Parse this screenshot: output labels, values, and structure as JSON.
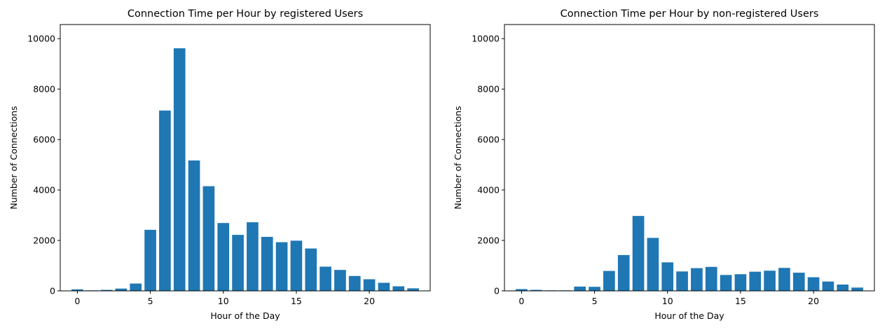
{
  "chart_data": [
    {
      "type": "bar",
      "title": "Connection Time per Hour by registered Users",
      "xlabel": "Hour of the Day",
      "ylabel": "Number of Connections",
      "x": [
        0,
        1,
        2,
        3,
        4,
        5,
        6,
        7,
        8,
        9,
        10,
        11,
        12,
        13,
        14,
        15,
        16,
        17,
        18,
        19,
        20,
        21,
        22,
        23
      ],
      "values": [
        60,
        20,
        40,
        90,
        290,
        2420,
        7150,
        9620,
        5170,
        4150,
        2690,
        2220,
        2720,
        2140,
        1930,
        1990,
        1680,
        960,
        830,
        590,
        460,
        320,
        180,
        100
      ],
      "xlim": [
        -1.17,
        24.17
      ],
      "ylim": [
        0,
        10560
      ],
      "xticks": [
        0,
        5,
        10,
        15,
        20
      ],
      "yticks": [
        0,
        2000,
        4000,
        6000,
        8000,
        10000
      ],
      "color": "#1f77b4",
      "grid": false
    },
    {
      "type": "bar",
      "title": "Connection Time per Hour by non-registered Users",
      "xlabel": "Hour of the Day",
      "ylabel": "Number of Connections",
      "x": [
        0,
        1,
        2,
        3,
        4,
        5,
        6,
        7,
        8,
        9,
        10,
        11,
        12,
        13,
        14,
        15,
        16,
        17,
        18,
        19,
        20,
        21,
        22,
        23
      ],
      "values": [
        70,
        40,
        20,
        20,
        170,
        160,
        790,
        1420,
        2970,
        2100,
        1130,
        770,
        900,
        950,
        630,
        660,
        760,
        800,
        910,
        720,
        540,
        370,
        250,
        130
      ],
      "xlim": [
        -1.17,
        24.17
      ],
      "ylim": [
        0,
        10560
      ],
      "xticks": [
        0,
        5,
        10,
        15,
        20
      ],
      "yticks": [
        0,
        2000,
        4000,
        6000,
        8000,
        10000
      ],
      "color": "#1f77b4",
      "grid": false
    }
  ]
}
